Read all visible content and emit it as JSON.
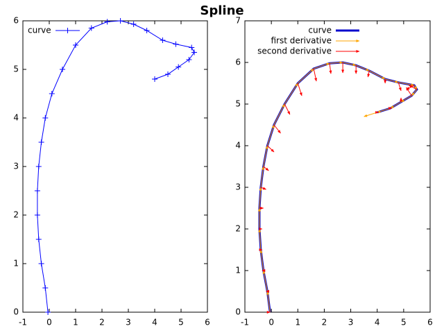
{
  "title": "Spline",
  "chart_data": [
    {
      "type": "line",
      "marker": "+",
      "xlim": [
        -1,
        6
      ],
      "xticks": [
        -1,
        0,
        1,
        2,
        3,
        4,
        5,
        6
      ],
      "ylim": [
        0,
        6
      ],
      "yticks": [
        0,
        1,
        2,
        3,
        4,
        5,
        6
      ],
      "legend": "top-left",
      "series": [
        {
          "name": "curve",
          "color": "#0000ff",
          "x": [
            -0.05,
            -0.15,
            -0.3,
            -0.4,
            -0.45,
            -0.45,
            -0.4,
            -0.3,
            -0.15,
            0.1,
            0.5,
            1.0,
            1.6,
            2.2,
            2.7,
            3.2,
            3.7,
            4.3,
            4.8,
            5.4,
            5.5,
            5.3,
            4.9,
            4.5,
            4.0
          ],
          "values": [
            0,
            0.5,
            1,
            1.5,
            2,
            2.5,
            3,
            3.5,
            4,
            4.5,
            5,
            5.5,
            5.85,
            5.98,
            6.0,
            5.93,
            5.8,
            5.6,
            5.52,
            5.45,
            5.35,
            5.2,
            5.05,
            4.9,
            4.8
          ]
        }
      ]
    },
    {
      "type": "vector",
      "xlim": [
        -1,
        6
      ],
      "xticks": [
        -1,
        0,
        1,
        2,
        3,
        4,
        5,
        6
      ],
      "ylim": [
        0,
        7
      ],
      "yticks": [
        0,
        1,
        2,
        3,
        4,
        5,
        6,
        7
      ],
      "legend": "top-center",
      "series": [
        {
          "name": "curve",
          "color": "#0000cc",
          "x": [
            -0.05,
            -0.15,
            -0.3,
            -0.4,
            -0.45,
            -0.45,
            -0.4,
            -0.3,
            -0.15,
            0.1,
            0.5,
            1.0,
            1.6,
            2.2,
            2.7,
            3.2,
            3.7,
            4.3,
            4.8,
            5.4,
            5.5,
            5.3,
            4.9,
            4.5,
            4.0
          ],
          "values": [
            0,
            0.5,
            1,
            1.5,
            2,
            2.5,
            3,
            3.5,
            4,
            4.5,
            5,
            5.5,
            5.85,
            5.98,
            6.0,
            5.93,
            5.8,
            5.6,
            5.52,
            5.45,
            5.35,
            5.2,
            5.05,
            4.9,
            4.8
          ]
        },
        {
          "name": "first derivative",
          "color": "#ffa500",
          "u": [
            -0.1,
            -0.15,
            -0.1,
            -0.05,
            0,
            0.05,
            0.1,
            0.15,
            0.25,
            0.4,
            0.5,
            0.6,
            0.6,
            0.5,
            0.5,
            0.5,
            0.6,
            0.5,
            0.6,
            0.1,
            -0.2,
            -0.4,
            -0.4,
            -0.5,
            -0.5
          ],
          "v": [
            0.5,
            0.5,
            0.5,
            0.5,
            0.5,
            0.5,
            0.5,
            0.5,
            0.5,
            0.5,
            0.5,
            0.35,
            0.13,
            0.02,
            -0.07,
            -0.13,
            -0.2,
            -0.08,
            -0.07,
            -0.1,
            -0.15,
            -0.15,
            -0.15,
            -0.1,
            -0.1
          ]
        },
        {
          "name": "second derivative",
          "color": "#ff0000",
          "u": [
            0,
            -0.05,
            -0.05,
            0.05,
            0.1,
            0.15,
            0.2,
            0.2,
            0.25,
            0.25,
            0.2,
            0.15,
            0.1,
            0.05,
            0,
            0,
            -0.05,
            0,
            0.1,
            -0.3,
            -0.3,
            -0.2,
            0,
            0.05,
            0.05
          ],
          "v": [
            0,
            0,
            0,
            0,
            0,
            0,
            -0.05,
            -0.1,
            -0.15,
            -0.2,
            -0.25,
            -0.3,
            -0.3,
            -0.25,
            -0.25,
            -0.2,
            -0.15,
            -0.1,
            -0.2,
            -0.1,
            0.1,
            0.2,
            0.1,
            0,
            0
          ]
        }
      ]
    }
  ]
}
